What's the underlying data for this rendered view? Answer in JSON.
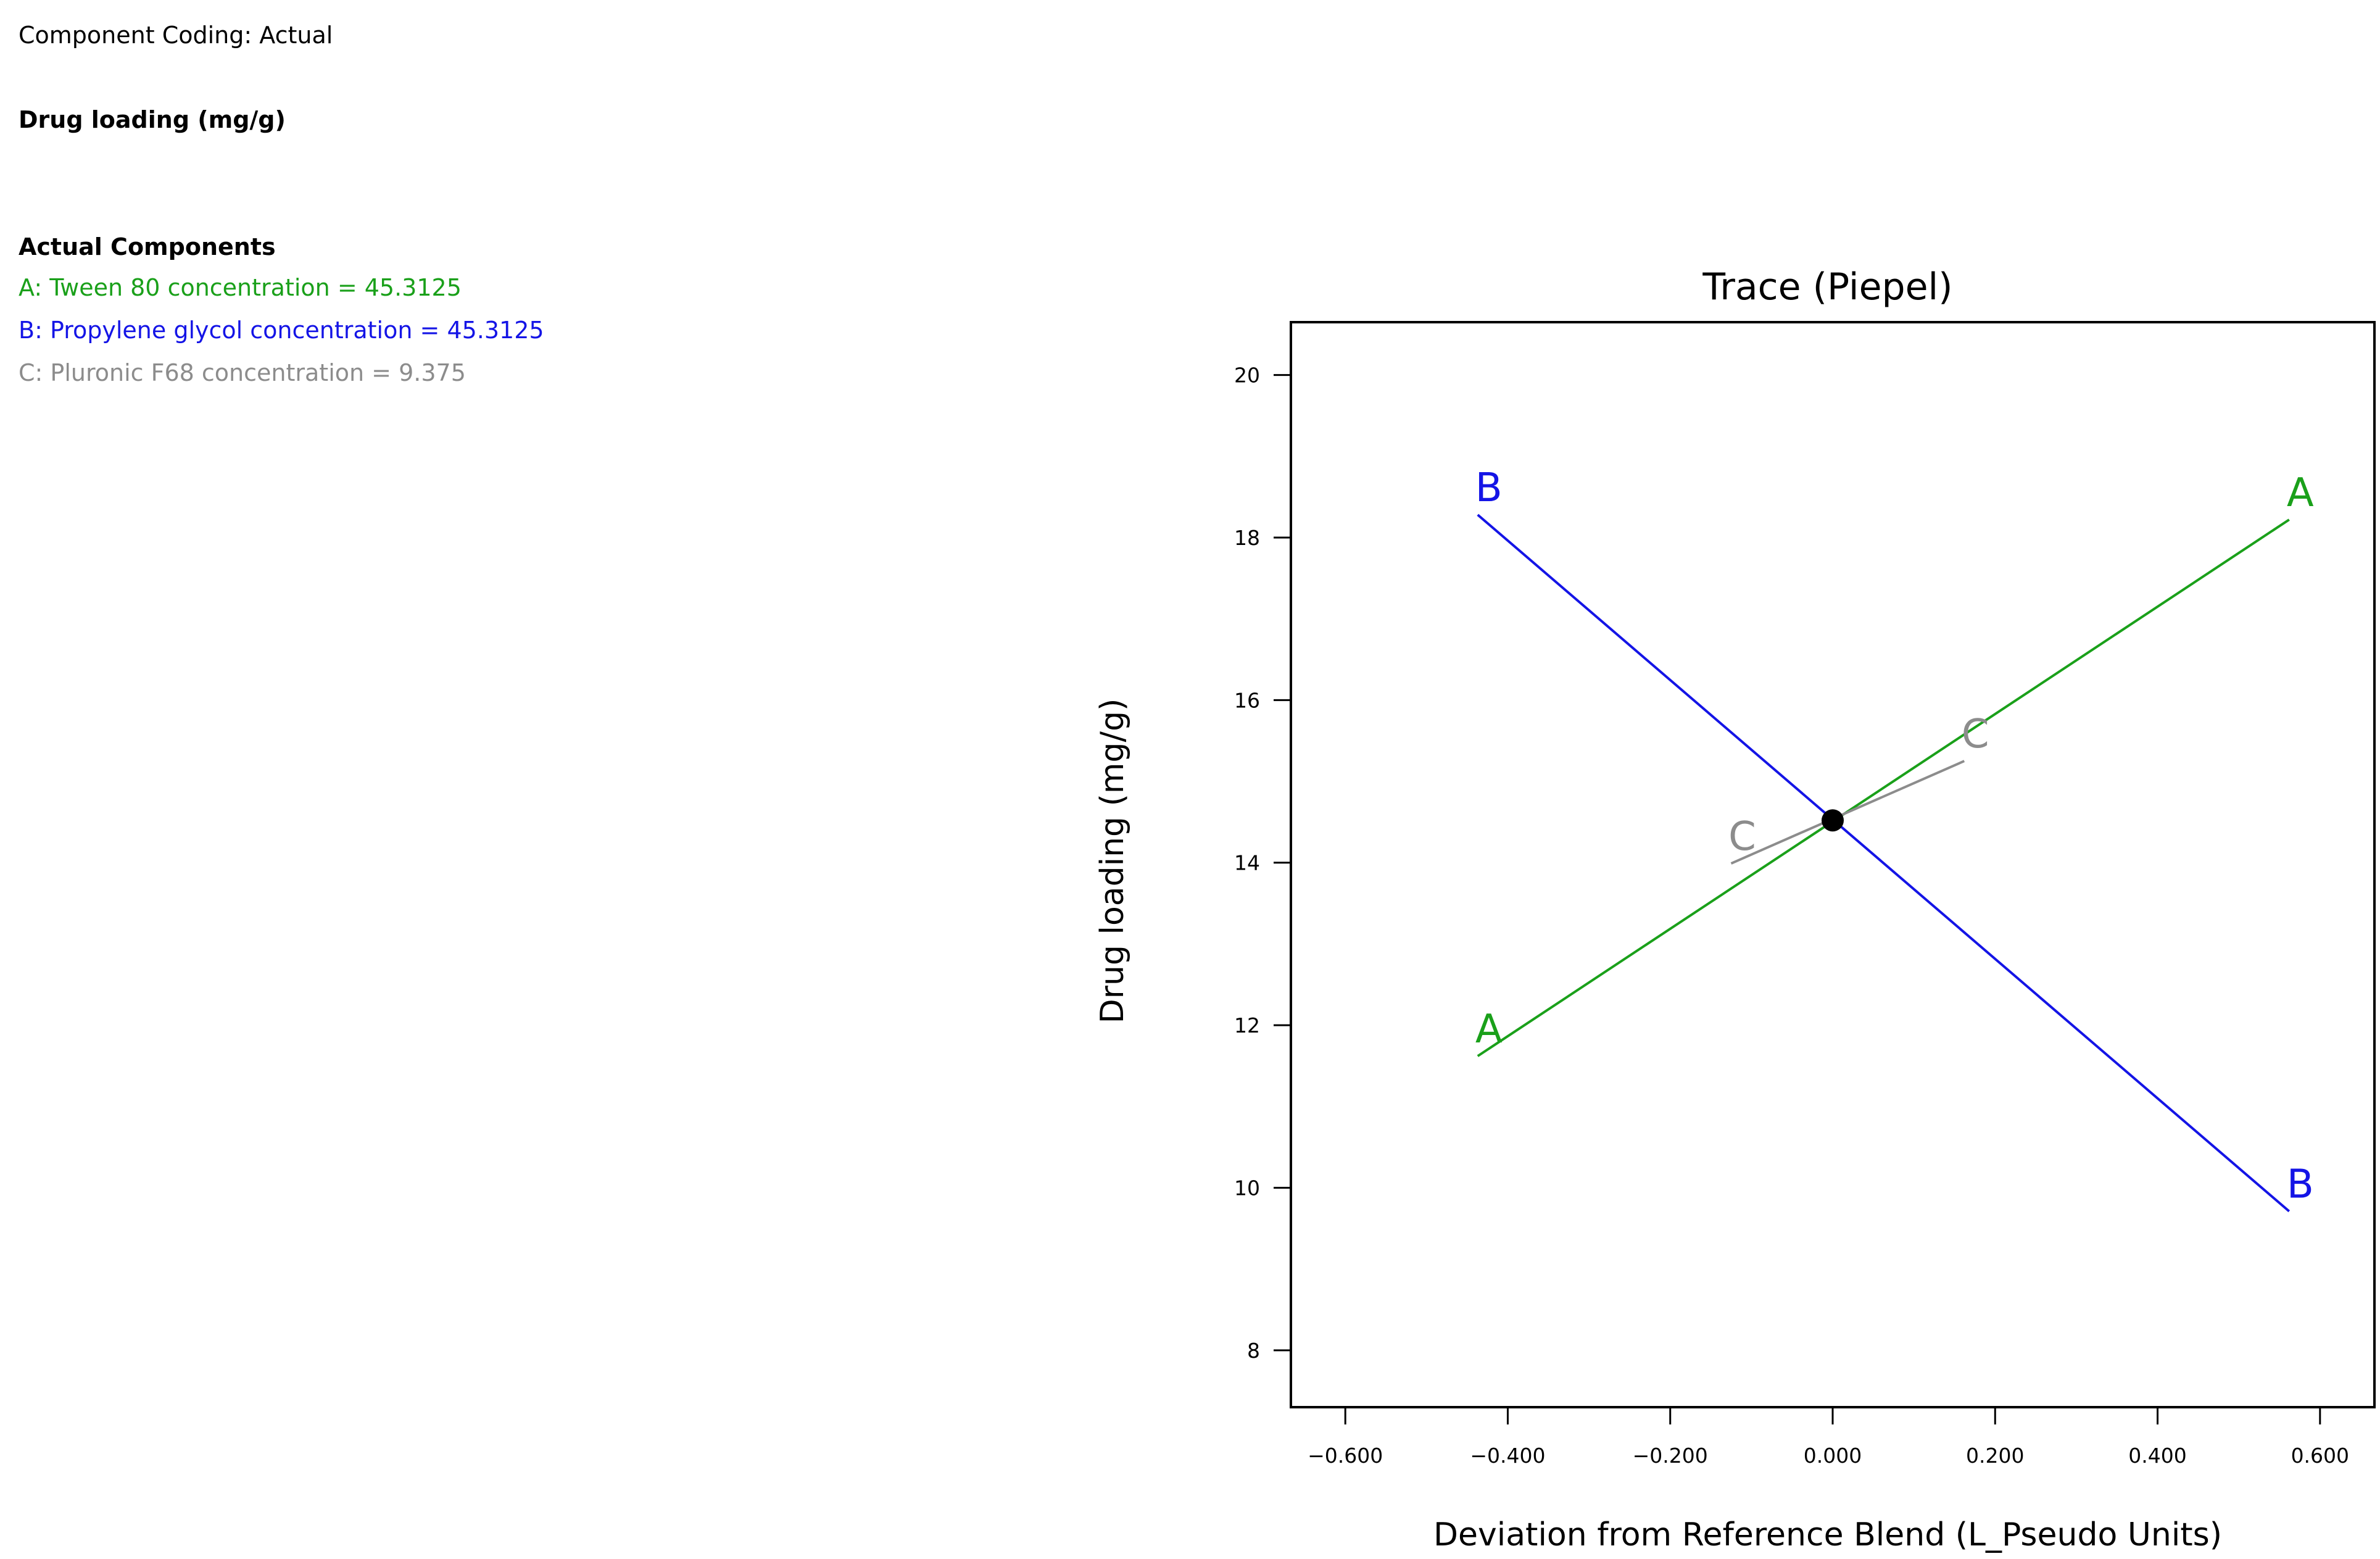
{
  "info": {
    "coding": "Component Coding: Actual",
    "response": "Drug loading (mg/g)",
    "components_header": "Actual Components",
    "components": [
      {
        "text": "A: Tween 80 concentration = 45.3125",
        "color": "#1aa01a"
      },
      {
        "text": "B: Propylene glycol concentration = 45.3125",
        "color": "#1414e6"
      },
      {
        "text": "C: Pluronic F68 concentration = 9.375",
        "color": "#8c8c8c"
      }
    ]
  },
  "chart_data": {
    "type": "line",
    "title": "Trace (Piepel)",
    "xlabel": "Deviation from Reference Blend (L_Pseudo Units)",
    "ylabel": "Drug loading (mg/g)",
    "xlim": [
      -0.667,
      0.667
    ],
    "ylim": [
      7.3,
      20.65
    ],
    "xticks": [
      -0.6,
      -0.4,
      -0.2,
      0.0,
      0.2,
      0.4,
      0.6
    ],
    "xtick_labels": [
      "−0.600",
      "−0.400",
      "−0.200",
      "0.000",
      "0.200",
      "0.400",
      "0.600"
    ],
    "yticks": [
      8,
      10,
      12,
      14,
      16,
      18,
      20
    ],
    "ytick_labels": [
      "8",
      "10",
      "12",
      "14",
      "16",
      "18",
      "20"
    ],
    "reference_point": {
      "x": 0.0,
      "y": 14.52
    },
    "series": [
      {
        "name": "A",
        "color": "#1aa01a",
        "points": [
          [
            -0.437,
            11.62
          ],
          [
            0.562,
            18.22
          ]
        ],
        "labels": [
          "A",
          "A"
        ]
      },
      {
        "name": "B",
        "color": "#1414e6",
        "points": [
          [
            -0.437,
            18.28
          ],
          [
            0.562,
            9.71
          ]
        ],
        "labels": [
          "B",
          "B"
        ]
      },
      {
        "name": "C",
        "color": "#8c8c8c",
        "points": [
          [
            -0.125,
            13.99
          ],
          [
            0.162,
            15.25
          ]
        ],
        "labels": [
          "C",
          "C"
        ]
      }
    ]
  }
}
